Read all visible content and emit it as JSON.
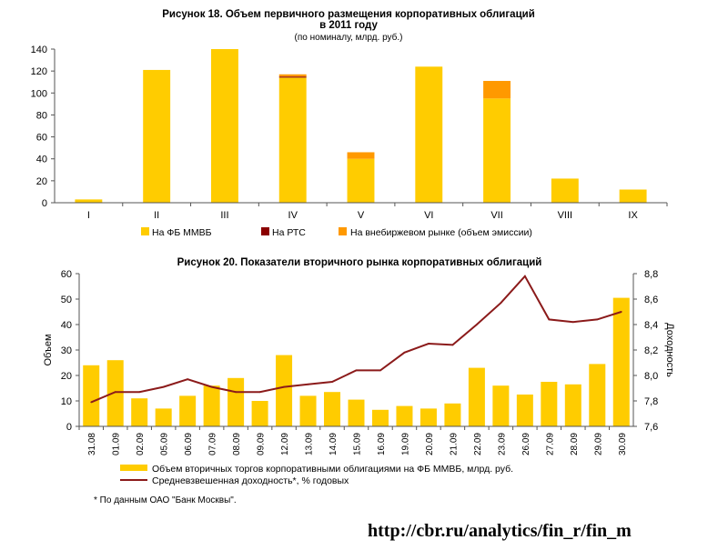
{
  "colors": {
    "mmvb": "#FFCC00",
    "rts": "#8B0000",
    "otc": "#FF9900",
    "line": "#8B1A1A",
    "axis": "#555555",
    "grid": "#bbbbbb"
  },
  "footnote": "* По данным ОАО \"Банк Москвы\".",
  "source_url": "http://cbr.ru/analytics/fin_r/fin_m",
  "chart_data": [
    {
      "type": "bar",
      "title": "Рисунок 18. Объем первичного размещения корпоративных облигаций",
      "title_line2": "в 2011 году",
      "subtitle": "(по номиналу, млрд. руб.)",
      "categories": [
        "I",
        "II",
        "III",
        "IV",
        "V",
        "VI",
        "VII",
        "VIII",
        "IX"
      ],
      "stacked": true,
      "ylim": [
        0,
        140
      ],
      "yticks": [
        "0",
        "20",
        "40",
        "60",
        "80",
        "100",
        "120",
        "140"
      ],
      "grid": false,
      "legend_position": "bottom",
      "series": [
        {
          "name": "На ФБ ММВБ",
          "values": [
            3,
            121,
            140,
            114,
            40,
            124,
            95,
            22,
            12
          ]
        },
        {
          "name": "На РТС",
          "values": [
            0,
            0,
            0,
            1,
            0,
            0,
            0,
            0,
            0
          ]
        },
        {
          "name": "На внебиржевом рынке (объем эмиссии)",
          "values": [
            0,
            0,
            0,
            2,
            6,
            0,
            16,
            0,
            0
          ]
        }
      ]
    },
    {
      "type": "bar",
      "title": "Рисунок 20. Показатели вторичного рынка корпоративных облигаций",
      "ylabel": "Объем",
      "y2label": "Доходность",
      "categories": [
        "31.08",
        "01.09",
        "02.09",
        "05.09",
        "06.09",
        "07.09",
        "08.09",
        "09.09",
        "12.09",
        "13.09",
        "14.09",
        "15.09",
        "16.09",
        "19.09",
        "20.09",
        "21.09",
        "22.09",
        "23.09",
        "26.09",
        "27.09",
        "28.09",
        "29.09",
        "30.09"
      ],
      "ylim": [
        0,
        60
      ],
      "yticks": [
        "0",
        "10",
        "20",
        "30",
        "40",
        "50",
        "60"
      ],
      "y2lim": [
        7.6,
        8.8
      ],
      "y2ticks": [
        "7,6",
        "7,8",
        "8,0",
        "8,2",
        "8,4",
        "8,6",
        "8,8"
      ],
      "grid": false,
      "legend_position": "bottom",
      "series": [
        {
          "name": "Объем вторичных торгов корпоративными облигациями на ФБ ММВБ, млрд. руб.",
          "axis": "left",
          "type": "bar",
          "values": [
            24,
            26,
            11,
            7,
            12,
            16,
            19,
            10,
            28,
            12,
            13.5,
            10.5,
            6.5,
            8,
            7,
            9,
            23,
            16,
            12.5,
            17.5,
            16.5,
            24.5,
            50.5
          ]
        },
        {
          "name": "Средневзвешенная доходность*, % годовых",
          "axis": "right",
          "type": "line",
          "values": [
            7.79,
            7.87,
            7.87,
            7.91,
            7.97,
            7.91,
            7.87,
            7.87,
            7.91,
            7.93,
            7.95,
            8.04,
            8.04,
            8.18,
            8.25,
            8.24,
            8.4,
            8.57,
            8.78,
            8.44,
            8.42,
            8.44,
            8.5
          ]
        }
      ]
    }
  ]
}
